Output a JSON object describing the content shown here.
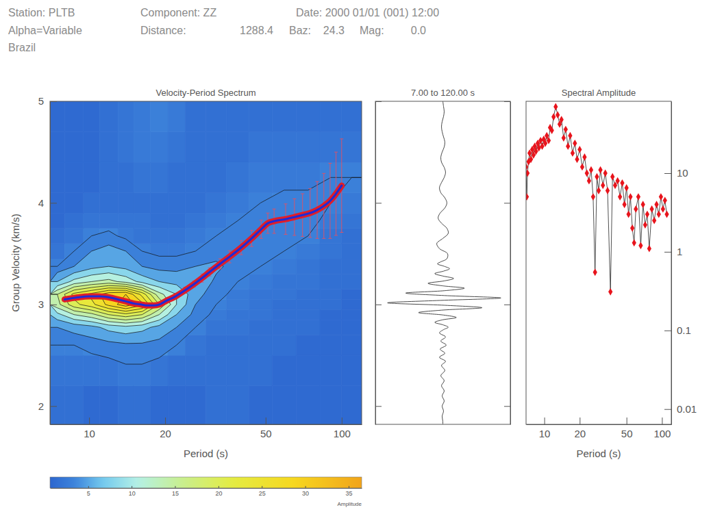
{
  "header": {
    "station": "Station: PLTB",
    "component": "Component: ZZ",
    "date": "Date: 2000 01/01 (001) 12:00",
    "alpha": "Alpha=Variable",
    "distance_label": "Distance:",
    "distance": "1288.4",
    "baz_label": "Baz:",
    "baz": "24.3",
    "mag_label": "Mag:",
    "mag": "0.0",
    "region": "Brazil"
  },
  "chart_data": [
    {
      "type": "heatmap",
      "title": "Velocity-Period Spectrum",
      "x_label": "Period (s)",
      "y_label": "Group Velocity (km/s)",
      "log": "x",
      "xlim": [
        7,
        120
      ],
      "xticks": [
        10,
        20,
        50,
        100
      ],
      "ylim": [
        1.82,
        5
      ],
      "yticks": [
        2,
        3,
        4,
        5
      ],
      "cell_periods": [
        7,
        8,
        9.5,
        11,
        13,
        15,
        17.5,
        20.5,
        24,
        29,
        35,
        43,
        53,
        66,
        82,
        100,
        120
      ],
      "cell_velocities": [
        1.82,
        2.2,
        2.5,
        2.7,
        2.85,
        2.95,
        3.05,
        3.15,
        3.3,
        3.45,
        3.6,
        3.75,
        3.9,
        4.1,
        4.4,
        4.7,
        5.0
      ],
      "cells": [
        [
          1.5,
          1.5,
          1,
          1,
          1.5,
          1.5,
          1,
          1,
          1,
          1.5,
          1.5,
          1,
          1,
          1,
          1,
          1
        ],
        [
          2,
          2,
          2,
          2,
          2.5,
          2.5,
          2,
          1.5,
          1.5,
          1.5,
          1.5,
          1.5,
          1,
          1,
          1,
          1
        ],
        [
          3,
          3,
          3.5,
          4,
          4.5,
          4.5,
          4,
          3,
          2,
          1.5,
          1.5,
          1.5,
          1.5,
          1,
          1,
          1
        ],
        [
          5,
          6,
          7,
          9,
          10,
          9,
          7,
          5,
          3,
          2,
          2,
          1.5,
          1.5,
          1.5,
          1,
          1
        ],
        [
          10,
          14,
          16,
          20,
          22,
          20,
          14,
          8,
          4,
          2.5,
          2,
          2,
          1.5,
          1.5,
          1,
          1
        ],
        [
          16,
          22,
          25,
          30,
          34,
          30,
          20,
          11,
          5,
          3,
          2.5,
          2,
          1.5,
          1.5,
          1.5,
          1
        ],
        [
          17,
          24,
          27,
          31,
          32,
          25,
          15,
          11,
          6,
          3.5,
          2.5,
          2,
          2,
          1.5,
          1.5,
          1
        ],
        [
          8,
          12,
          14,
          15,
          13,
          10,
          8,
          7,
          7,
          4.5,
          3,
          2.5,
          2,
          2,
          1.5,
          1.5
        ],
        [
          3,
          5,
          7,
          8,
          7,
          5,
          4,
          4,
          5,
          5.5,
          4,
          3,
          2.5,
          2,
          1.5,
          1.5
        ],
        [
          2,
          3,
          5,
          6,
          5,
          3,
          2.5,
          2.5,
          3,
          4,
          5,
          4,
          3,
          2.5,
          2,
          1.5
        ],
        [
          1.5,
          2,
          3,
          3.5,
          2.5,
          2,
          2,
          2,
          2.5,
          3,
          4,
          4.5,
          3.5,
          3,
          2,
          1.5
        ],
        [
          1,
          1.5,
          2,
          2,
          2,
          2,
          1.5,
          1.5,
          2,
          2.5,
          3,
          4,
          4,
          3.5,
          2.5,
          2
        ],
        [
          1,
          1,
          1.5,
          1.5,
          1.5,
          1.5,
          1.5,
          1.5,
          1.5,
          2,
          2.5,
          3,
          3.5,
          3.5,
          3,
          2.5
        ],
        [
          1,
          1,
          1,
          1.5,
          1.5,
          2,
          2,
          1.5,
          1.5,
          1.5,
          2,
          2.5,
          2.5,
          2.5,
          3,
          3
        ],
        [
          1,
          1,
          1,
          1.5,
          2,
          2.5,
          2.5,
          2,
          1.5,
          1.5,
          1.5,
          2,
          2,
          2,
          2,
          2
        ],
        [
          1,
          1,
          1,
          1.5,
          2,
          2.5,
          3,
          2.5,
          1.5,
          1.5,
          1.5,
          1.5,
          1.5,
          1.5,
          1.5,
          1.5
        ]
      ],
      "contour_levels": [
        3,
        5,
        8,
        11,
        14,
        17,
        20,
        23,
        26,
        29,
        32
      ],
      "colorbar_range": [
        0.6,
        36.5
      ],
      "colorbar_ticks": [
        5,
        10,
        15,
        20,
        25,
        30,
        35
      ],
      "colorbar_label": "Amplitude",
      "series": [
        {
          "type": "line",
          "color": "#1f2bd6",
          "x": [
            8,
            9,
            10,
            11,
            12,
            13,
            14,
            15,
            16,
            17,
            18,
            19,
            20,
            22,
            24,
            26,
            28,
            30,
            33,
            36,
            40,
            44,
            48,
            51,
            54,
            60,
            65,
            70,
            75,
            80,
            85,
            90,
            95,
            100
          ],
          "values": [
            3.05,
            3.07,
            3.08,
            3.08,
            3.07,
            3.05,
            3.03,
            3.01,
            3.0,
            2.99,
            2.99,
            3.0,
            3.03,
            3.08,
            3.14,
            3.2,
            3.26,
            3.32,
            3.4,
            3.47,
            3.56,
            3.65,
            3.74,
            3.8,
            3.82,
            3.84,
            3.86,
            3.88,
            3.9,
            3.93,
            3.97,
            4.02,
            4.09,
            4.17
          ],
          "errors": [
            null,
            null,
            null,
            null,
            null,
            null,
            null,
            null,
            null,
            null,
            null,
            null,
            null,
            null,
            0.03,
            0.03,
            0.04,
            0.04,
            0.05,
            0.06,
            0.07,
            0.08,
            0.09,
            0.1,
            0.12,
            0.15,
            0.18,
            0.21,
            0.24,
            0.28,
            0.32,
            0.37,
            0.41,
            0.46
          ]
        }
      ]
    },
    {
      "type": "line",
      "title": "7.00 to 120.00 s",
      "orientation": "horizontal",
      "tick_labels": false,
      "xlim": [
        -1,
        1
      ],
      "ylim": [
        1.82,
        5
      ],
      "yticks": [
        2,
        3,
        4,
        5
      ],
      "color": "#333333",
      "x": [
        5.0,
        4.95,
        4.9,
        4.85,
        4.8,
        4.75,
        4.7,
        4.65,
        4.6,
        4.55,
        4.5,
        4.45,
        4.4,
        4.35,
        4.3,
        4.25,
        4.2,
        4.15,
        4.1,
        4.05,
        4.0,
        3.95,
        3.9,
        3.85,
        3.8,
        3.75,
        3.7,
        3.65,
        3.6,
        3.55,
        3.5,
        3.45,
        3.42,
        3.4,
        3.376,
        3.352,
        3.328,
        3.304,
        3.28,
        3.256,
        3.232,
        3.208,
        3.184,
        3.16,
        3.136,
        3.112,
        3.088,
        3.064,
        3.04,
        3.016,
        2.992,
        2.968,
        2.944,
        2.92,
        2.896,
        2.872,
        2.848,
        2.824,
        2.8,
        2.776,
        2.752,
        2.72,
        2.68,
        2.64,
        2.6,
        2.56,
        2.52,
        2.48,
        2.44,
        2.4,
        2.35,
        2.3,
        2.25,
        2.2,
        2.15,
        2.1,
        2.05,
        2.0,
        1.95,
        1.9,
        1.85,
        1.82
      ],
      "values": [
        0.0,
        0.01,
        0.02,
        0.01,
        -0.01,
        -0.02,
        -0.01,
        0.01,
        0.03,
        0.02,
        -0.01,
        -0.03,
        -0.02,
        0.02,
        0.04,
        0.02,
        -0.02,
        -0.05,
        -0.03,
        0.03,
        0.06,
        0.03,
        -0.04,
        -0.07,
        -0.02,
        0.06,
        0.08,
        0.0,
        -0.09,
        -0.05,
        0.07,
        0.06,
        -0.03,
        -0.08,
        0.02,
        0.1,
        0.01,
        -0.12,
        0.0,
        0.16,
        0.02,
        -0.22,
        -0.01,
        0.32,
        0.03,
        -0.55,
        0.02,
        0.86,
        -0.04,
        -0.82,
        0.03,
        0.58,
        -0.02,
        -0.36,
        0.01,
        0.2,
        -0.01,
        -0.12,
        0.0,
        0.08,
        0.01,
        -0.05,
        0.04,
        -0.03,
        0.05,
        -0.04,
        0.03,
        -0.05,
        0.04,
        -0.02,
        0.03,
        -0.03,
        0.02,
        -0.02,
        0.02,
        -0.01,
        0.02,
        -0.01,
        0.01,
        -0.01,
        0.0,
        0.0
      ]
    },
    {
      "type": "scatter",
      "title": "Spectral Amplitude",
      "x_label": "Period (s)",
      "log": true,
      "xlim": [
        7,
        120
      ],
      "xticks": [
        10,
        20,
        50,
        100
      ],
      "ylim": [
        0.0064,
        82
      ],
      "yticks": [
        0.01,
        0.1,
        1,
        10
      ],
      "marker": "diamond",
      "line_style": "solid",
      "color": "#e8141c",
      "x": [
        7.0,
        7.1,
        7.2,
        7.35,
        7.5,
        7.7,
        7.9,
        8.1,
        8.3,
        8.5,
        8.8,
        9.0,
        9.3,
        9.6,
        9.9,
        10.2,
        10.5,
        10.9,
        11.2,
        11.6,
        12.0,
        12.5,
        13.0,
        13.5,
        14.0,
        14.6,
        15.2,
        15.9,
        16.6,
        17.4,
        18.2,
        19.0,
        20,
        21,
        22,
        23,
        24,
        25,
        26,
        27,
        28,
        29,
        30,
        31.5,
        33,
        34.5,
        36.5,
        38,
        40,
        42,
        44,
        46,
        48,
        50,
        52,
        54,
        56,
        58,
        60,
        63,
        66,
        69,
        72,
        75,
        78,
        82,
        86,
        90,
        94,
        98,
        102,
        106,
        110
      ],
      "values": [
        12,
        5,
        10,
        14,
        18,
        15,
        20,
        17,
        22,
        19,
        24,
        21,
        26,
        22,
        27,
        24,
        30,
        26,
        38,
        35,
        52,
        70,
        55,
        42,
        48,
        28,
        36,
        22,
        30,
        18,
        24,
        15,
        20,
        12,
        16,
        10,
        8,
        11,
        5,
        0.55,
        9,
        6,
        11,
        7,
        10,
        6,
        0.31,
        9,
        7,
        8,
        5,
        7.5,
        4,
        6.5,
        3,
        5,
        2,
        1.3,
        3.5,
        5,
        1.2,
        4,
        2.2,
        3,
        1.1,
        3.5,
        2.5,
        4,
        3,
        5,
        3.5,
        4.5,
        3
      ]
    }
  ]
}
